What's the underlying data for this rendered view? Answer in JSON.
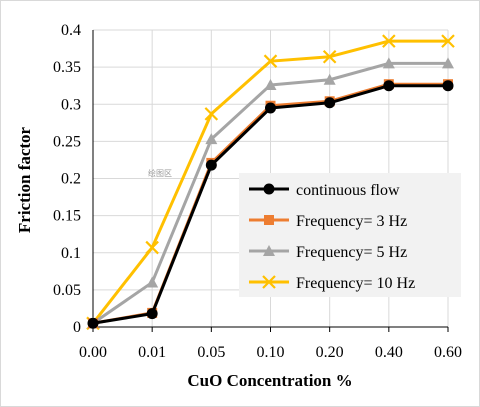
{
  "chart_data": {
    "type": "line",
    "categories": [
      "0.00",
      "0.01",
      "0.05",
      "0.10",
      "0.20",
      "0.40",
      "0.60"
    ],
    "ylim": [
      0,
      0.4
    ],
    "yticks": [
      "0",
      "0.05",
      "0.1",
      "0.15",
      "0.2",
      "0.25",
      "0.3",
      "0.35",
      "0.4"
    ],
    "xlabel": "CuO Concentration %",
    "ylabel": "Friction factor",
    "grid": true,
    "legend_position": "bottom-right",
    "series": [
      {
        "name": "continuous flow",
        "color": "#000000",
        "marker": "circle",
        "values": [
          0.005,
          0.018,
          0.218,
          0.295,
          0.302,
          0.325,
          0.325
        ]
      },
      {
        "name": "Frequency= 3 Hz",
        "color": "#ED7D31",
        "marker": "square",
        "values": [
          0.005,
          0.019,
          0.221,
          0.298,
          0.304,
          0.327,
          0.327
        ]
      },
      {
        "name": "Frequency= 5 Hz",
        "color": "#A5A5A5",
        "marker": "triangle",
        "values": [
          0.005,
          0.06,
          0.253,
          0.326,
          0.333,
          0.355,
          0.355
        ]
      },
      {
        "name": "Frequency= 10 Hz",
        "color": "#FFC000",
        "marker": "x",
        "values": [
          0.005,
          0.107,
          0.287,
          0.358,
          0.364,
          0.385,
          0.385
        ]
      }
    ],
    "watermark": "绘图区"
  }
}
